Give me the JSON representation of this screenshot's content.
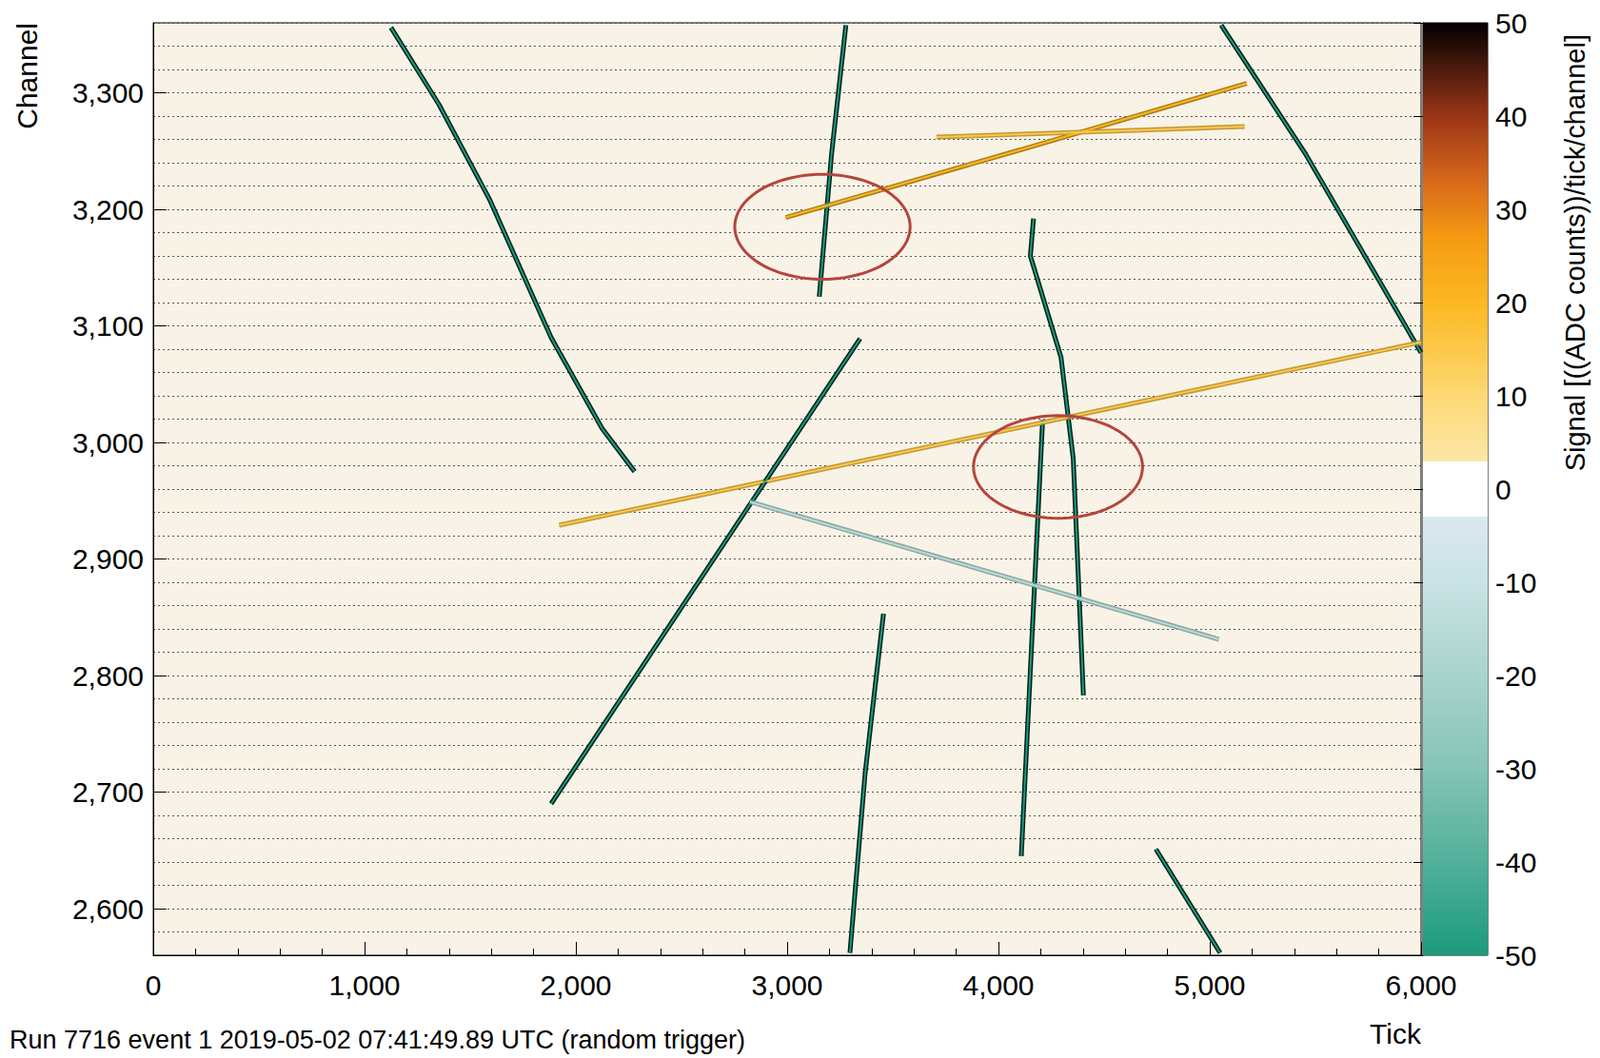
{
  "chart_data": {
    "type": "line",
    "x_label": "Tick",
    "y_label": "Channel",
    "footer": "Run 7716 event 1 2019-05-02 07:41:49.89 UTC (random trigger)",
    "xlim": [
      0,
      6000
    ],
    "xticks": [
      0,
      1000,
      2000,
      3000,
      4000,
      5000,
      6000
    ],
    "ylim": [
      2560,
      3360
    ],
    "yticks": [
      2600,
      2700,
      2800,
      2900,
      3000,
      3100,
      3200,
      3300
    ],
    "grid": true,
    "tracks": [
      {
        "signal": -50,
        "x": [
          1125,
          1352,
          1593,
          1883,
          2124,
          2278
        ],
        "y": [
          3356,
          3290,
          3208,
          3090,
          3012,
          2975
        ]
      },
      {
        "signal": -50,
        "x": [
          3278,
          3210,
          3152
        ],
        "y": [
          3358,
          3247,
          3125
        ]
      },
      {
        "signal": 20,
        "x": [
          2993,
          4103,
          5175
        ],
        "y": [
          3193,
          3251,
          3308
        ]
      },
      {
        "signal": 15,
        "x": [
          3707,
          5165
        ],
        "y": [
          3262,
          3271
        ]
      },
      {
        "signal": -50,
        "x": [
          5054,
          5455,
          6000
        ],
        "y": [
          3358,
          3247,
          3077
        ]
      },
      {
        "signal": -50,
        "x": [
          4166,
          4151,
          4296,
          4354,
          4402
        ],
        "y": [
          3192,
          3160,
          3073,
          2986,
          2783
        ]
      },
      {
        "signal": -50,
        "x": [
          4209,
          4108
        ],
        "y": [
          3019,
          2645
        ]
      },
      {
        "signal": 15,
        "x": [
          1921,
          6000
        ],
        "y": [
          2929,
          3086
        ]
      },
      {
        "signal": -50,
        "x": [
          1883,
          3345
        ],
        "y": [
          2690,
          3089
        ]
      },
      {
        "signal": -15,
        "x": [
          2824,
          5044
        ],
        "y": [
          2949,
          2831
        ]
      },
      {
        "signal": -50,
        "x": [
          3456,
          3369,
          3297
        ],
        "y": [
          2853,
          2716,
          2562
        ]
      },
      {
        "signal": -50,
        "x": [
          4745,
          5049
        ],
        "y": [
          2651,
          2562
        ]
      }
    ],
    "ellipses": [
      {
        "center": [
          3167,
          3185
        ],
        "x_radius": 415,
        "y_radius": 45
      },
      {
        "center": [
          4282,
          2979
        ],
        "x_radius": 400,
        "y_radius": 44
      }
    ],
    "colorbar": {
      "label": "Signal [((ADC counts))/tick/channel]",
      "range": [
        -50,
        50
      ],
      "ticks": [
        -50,
        -40,
        -30,
        -20,
        -10,
        0,
        10,
        20,
        30,
        40,
        50
      ]
    }
  }
}
